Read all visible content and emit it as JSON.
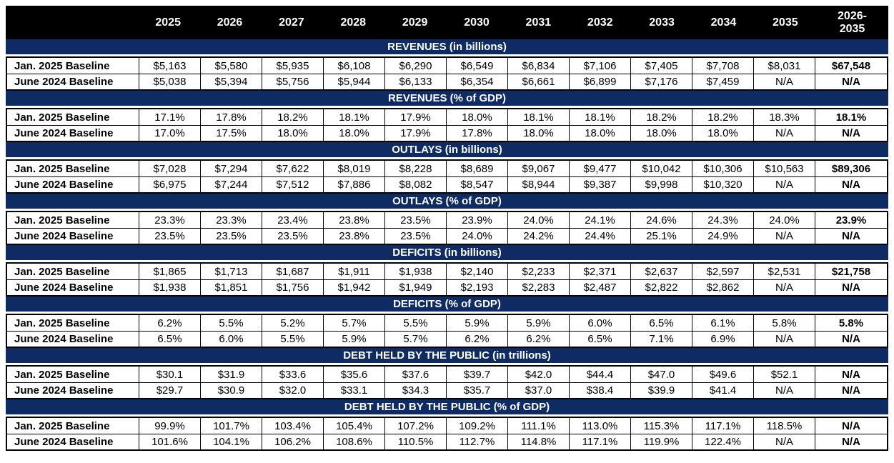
{
  "colors": {
    "header_bg": "#000000",
    "header_text": "#ffffff",
    "band_bg": "#0f2b64",
    "band_text": "#ffffff",
    "cell_text": "#000000",
    "border": "#000000"
  },
  "chart_data": {
    "type": "table",
    "columns": [
      "2025",
      "2026",
      "2027",
      "2028",
      "2029",
      "2030",
      "2031",
      "2032",
      "2033",
      "2034",
      "2035",
      "2026-2035"
    ],
    "row_labels": [
      "Jan. 2025 Baseline",
      "June 2024 Baseline"
    ],
    "sections": [
      {
        "title": "REVENUES (in billions)",
        "rows": [
          {
            "label": "Jan. 2025 Baseline",
            "values": [
              "$5,163",
              "$5,580",
              "$5,935",
              "$6,108",
              "$6,290",
              "$6,549",
              "$6,834",
              "$7,106",
              "$7,405",
              "$7,708",
              "$8,031",
              "$67,548"
            ]
          },
          {
            "label": "June 2024 Baseline",
            "values": [
              "$5,038",
              "$5,394",
              "$5,756",
              "$5,944",
              "$6,133",
              "$6,354",
              "$6,661",
              "$6,899",
              "$7,176",
              "$7,459",
              "N/A",
              "N/A"
            ]
          }
        ]
      },
      {
        "title": "REVENUES (% of GDP)",
        "rows": [
          {
            "label": "Jan. 2025 Baseline",
            "values": [
              "17.1%",
              "17.8%",
              "18.2%",
              "18.1%",
              "17.9%",
              "18.0%",
              "18.1%",
              "18.1%",
              "18.2%",
              "18.2%",
              "18.3%",
              "18.1%"
            ]
          },
          {
            "label": "June 2024 Baseline",
            "values": [
              "17.0%",
              "17.5%",
              "18.0%",
              "18.0%",
              "17.9%",
              "17.8%",
              "18.0%",
              "18.0%",
              "18.0%",
              "18.0%",
              "N/A",
              "N/A"
            ]
          }
        ]
      },
      {
        "title": "OUTLAYS (in billions)",
        "rows": [
          {
            "label": "Jan. 2025 Baseline",
            "values": [
              "$7,028",
              "$7,294",
              "$7,622",
              "$8,019",
              "$8,228",
              "$8,689",
              "$9,067",
              "$9,477",
              "$10,042",
              "$10,306",
              "$10,563",
              "$89,306"
            ]
          },
          {
            "label": "June 2024 Baseline",
            "values": [
              "$6,975",
              "$7,244",
              "$7,512",
              "$7,886",
              "$8,082",
              "$8,547",
              "$8,944",
              "$9,387",
              "$9,998",
              "$10,320",
              "N/A",
              "N/A"
            ]
          }
        ]
      },
      {
        "title": "OUTLAYS (% of GDP)",
        "rows": [
          {
            "label": "Jan. 2025 Baseline",
            "values": [
              "23.3%",
              "23.3%",
              "23.4%",
              "23.8%",
              "23.5%",
              "23.9%",
              "24.0%",
              "24.1%",
              "24.6%",
              "24.3%",
              "24.0%",
              "23.9%"
            ]
          },
          {
            "label": "June 2024 Baseline",
            "values": [
              "23.5%",
              "23.5%",
              "23.5%",
              "23.8%",
              "23.5%",
              "24.0%",
              "24.2%",
              "24.4%",
              "25.1%",
              "24.9%",
              "N/A",
              "N/A"
            ]
          }
        ]
      },
      {
        "title": "DEFICITS (in billions)",
        "rows": [
          {
            "label": "Jan. 2025 Baseline",
            "values": [
              "$1,865",
              "$1,713",
              "$1,687",
              "$1,911",
              "$1,938",
              "$2,140",
              "$2,233",
              "$2,371",
              "$2,637",
              "$2,597",
              "$2,531",
              "$21,758"
            ]
          },
          {
            "label": "June 2024 Baseline",
            "values": [
              "$1,938",
              "$1,851",
              "$1,756",
              "$1,942",
              "$1,949",
              "$2,193",
              "$2,283",
              "$2,487",
              "$2,822",
              "$2,862",
              "N/A",
              "N/A"
            ]
          }
        ]
      },
      {
        "title": "DEFICITS (% of GDP)",
        "rows": [
          {
            "label": "Jan. 2025 Baseline",
            "values": [
              "6.2%",
              "5.5%",
              "5.2%",
              "5.7%",
              "5.5%",
              "5.9%",
              "5.9%",
              "6.0%",
              "6.5%",
              "6.1%",
              "5.8%",
              "5.8%"
            ]
          },
          {
            "label": "June 2024 Baseline",
            "values": [
              "6.5%",
              "6.0%",
              "5.5%",
              "5.9%",
              "5.7%",
              "6.2%",
              "6.2%",
              "6.5%",
              "7.1%",
              "6.9%",
              "N/A",
              "N/A"
            ]
          }
        ]
      },
      {
        "title": "DEBT HELD BY THE PUBLIC (in trillions)",
        "rows": [
          {
            "label": "Jan. 2025 Baseline",
            "values": [
              "$30.1",
              "$31.9",
              "$33.6",
              "$35.6",
              "$37.6",
              "$39.7",
              "$42.0",
              "$44.4",
              "$47.0",
              "$49.6",
              "$52.1",
              "N/A"
            ]
          },
          {
            "label": "June 2024 Baseline",
            "values": [
              "$29.7",
              "$30.9",
              "$32.0",
              "$33.1",
              "$34.3",
              "$35.7",
              "$37.0",
              "$38.4",
              "$39.9",
              "$41.4",
              "N/A",
              "N/A"
            ]
          }
        ]
      },
      {
        "title": "DEBT HELD BY THE PUBLIC (% of GDP)",
        "rows": [
          {
            "label": "Jan. 2025 Baseline",
            "values": [
              "99.9%",
              "101.7%",
              "103.4%",
              "105.4%",
              "107.2%",
              "109.2%",
              "111.1%",
              "113.0%",
              "115.3%",
              "117.1%",
              "118.5%",
              "N/A"
            ]
          },
          {
            "label": "June 2024 Baseline",
            "values": [
              "101.6%",
              "104.1%",
              "106.2%",
              "108.6%",
              "110.5%",
              "112.7%",
              "114.8%",
              "117.1%",
              "119.9%",
              "122.4%",
              "N/A",
              "N/A"
            ]
          }
        ]
      }
    ]
  }
}
